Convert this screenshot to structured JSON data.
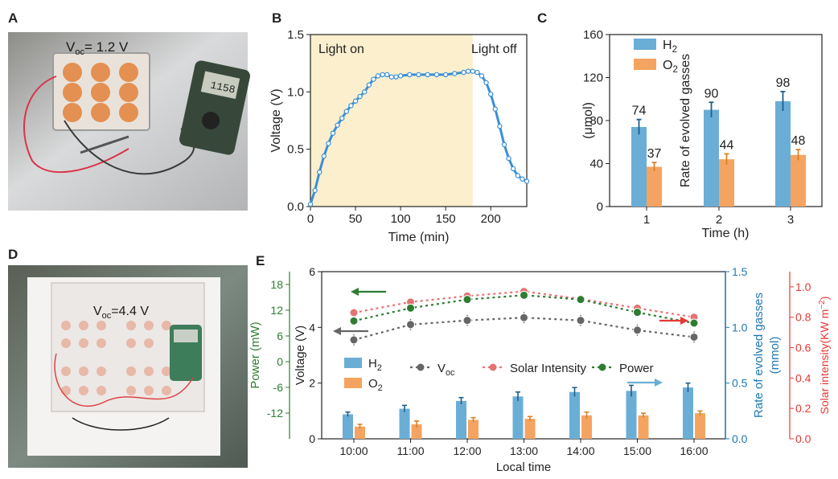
{
  "panels": {
    "a": {
      "letter": "A",
      "caption": "V",
      "sub": "oc",
      "value": "= 1.2 V",
      "multimeter_reading": "1158"
    },
    "d": {
      "letter": "D",
      "caption": "V",
      "sub": "oc",
      "value": "=4.4 V"
    }
  },
  "chart_data": [
    {
      "id": "B",
      "letter": "B",
      "type": "line",
      "title": "",
      "xlabel": "Time (min)",
      "ylabel": "Voltage (V)",
      "xlim": [
        0,
        240
      ],
      "ylim": [
        0.0,
        1.5
      ],
      "xticks": [
        0,
        50,
        100,
        150,
        200
      ],
      "yticks": [
        0.0,
        0.5,
        1.0,
        1.5
      ],
      "ytick_labels": [
        "0.0",
        "0.5",
        "1.0",
        "1.5"
      ],
      "shaded_region": [
        0,
        180
      ],
      "annotations": [
        "Light on",
        "Light off"
      ],
      "x": [
        0,
        5,
        10,
        15,
        20,
        25,
        30,
        35,
        40,
        45,
        50,
        55,
        60,
        65,
        70,
        75,
        80,
        85,
        90,
        95,
        100,
        110,
        120,
        130,
        140,
        150,
        160,
        170,
        175,
        180,
        185,
        190,
        195,
        200,
        205,
        210,
        215,
        220,
        225,
        230,
        235,
        240
      ],
      "y": [
        0.02,
        0.14,
        0.3,
        0.44,
        0.55,
        0.64,
        0.71,
        0.77,
        0.83,
        0.88,
        0.92,
        0.96,
        1.0,
        1.06,
        1.11,
        1.14,
        1.15,
        1.15,
        1.13,
        1.13,
        1.14,
        1.15,
        1.15,
        1.15,
        1.15,
        1.15,
        1.16,
        1.17,
        1.18,
        1.18,
        1.17,
        1.14,
        1.08,
        0.98,
        0.85,
        0.7,
        0.54,
        0.42,
        0.33,
        0.27,
        0.24,
        0.22
      ],
      "color": "#3a8fd6"
    },
    {
      "id": "C",
      "letter": "C",
      "type": "bar",
      "xlabel": "Time (h)",
      "ylabel": "Rate of evolved gasses",
      "ylabel2": "(μmol)",
      "ylim": [
        0,
        160
      ],
      "yticks": [
        0,
        40,
        80,
        120,
        160
      ],
      "categories": [
        "1",
        "2",
        "3"
      ],
      "series": [
        {
          "name": "H",
          "sub": "2",
          "values": [
            74,
            90,
            98
          ],
          "errors": [
            7,
            7,
            9
          ],
          "labels": [
            "74",
            "90",
            "98"
          ],
          "color": "#6aaed6"
        },
        {
          "name": "O",
          "sub": "2",
          "values": [
            37,
            44,
            48
          ],
          "errors": [
            4,
            5,
            5
          ],
          "labels": [
            "37",
            "44",
            "48"
          ],
          "color": "#f4a460"
        }
      ]
    },
    {
      "id": "E",
      "letter": "E",
      "type": "bar+line",
      "xlabel": "Local time",
      "categories": [
        "10:00",
        "11:00",
        "12:00",
        "13:00",
        "14:00",
        "15:00",
        "16:00"
      ],
      "axes": {
        "voltage": {
          "label": "Voltage (V)",
          "ylim": [
            0,
            6
          ],
          "ticks": [
            0,
            2,
            4,
            6
          ],
          "color": "#222222"
        },
        "power": {
          "label": "Power (mW)",
          "ylim": [
            -18,
            21
          ],
          "ticks": [
            -12,
            -6,
            0,
            6,
            12,
            18
          ],
          "color": "#2e7d32"
        },
        "gas": {
          "label": "Rate of evolved gasses",
          "label2": "(mmol)",
          "ylim": [
            0,
            1.5
          ],
          "ticks": [
            0.0,
            0.5,
            1.0,
            1.5
          ],
          "tick_labels": [
            "0.0",
            "0.5",
            "1.0",
            "1.5"
          ],
          "color": "#1f78b4"
        },
        "solar": {
          "label": "Solar intensity(KW m",
          "sup": "−2",
          "label_end": ")",
          "ylim": [
            0,
            1.1
          ],
          "ticks": [
            0.0,
            0.2,
            0.4,
            0.6,
            0.8,
            1.0
          ],
          "tick_labels": [
            "0.0",
            "0.2",
            "0.4",
            "0.6",
            "0.8",
            "1.0"
          ],
          "color": "#e53935"
        }
      },
      "bars": [
        {
          "name": "H",
          "sub": "2",
          "axis": "gas",
          "values": [
            0.22,
            0.27,
            0.34,
            0.38,
            0.42,
            0.43,
            0.46
          ],
          "errors": [
            0.02,
            0.03,
            0.03,
            0.04,
            0.04,
            0.05,
            0.04
          ],
          "color": "#6aaed6"
        },
        {
          "name": "O",
          "sub": "2",
          "axis": "gas",
          "values": [
            0.11,
            0.13,
            0.17,
            0.18,
            0.21,
            0.21,
            0.23
          ],
          "errors": [
            0.02,
            0.03,
            0.02,
            0.02,
            0.03,
            0.02,
            0.02
          ],
          "color": "#f4a460"
        }
      ],
      "lines": [
        {
          "name": "V",
          "sub": "oc",
          "axis": "voltage",
          "values": [
            3.55,
            4.1,
            4.25,
            4.35,
            4.25,
            3.9,
            3.65
          ],
          "errors": [
            0.2,
            0.2,
            0.2,
            0.2,
            0.2,
            0.2,
            0.2
          ],
          "color": "#666666"
        },
        {
          "name": "Solar Intensity",
          "sub": "",
          "axis": "solar",
          "values": [
            0.83,
            0.9,
            0.94,
            0.97,
            0.92,
            0.86,
            0.8
          ],
          "color": "#e57373"
        },
        {
          "name": "Power",
          "sub": "",
          "axis": "power",
          "values": [
            9.5,
            12.5,
            14.5,
            15.5,
            14.5,
            11.5,
            9
          ],
          "color": "#2e7d32"
        }
      ]
    }
  ]
}
